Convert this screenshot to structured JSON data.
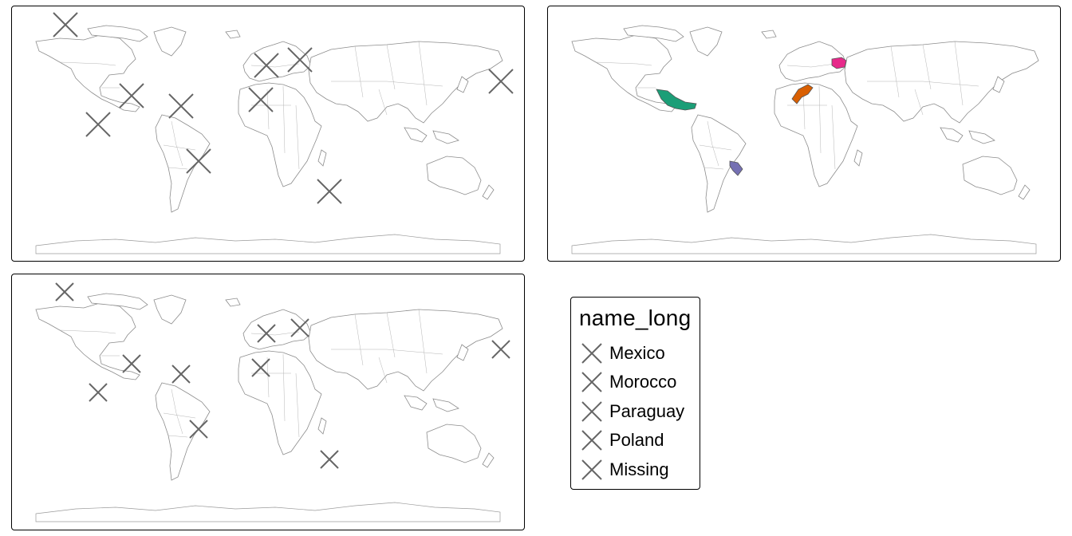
{
  "legend": {
    "title": "name_long",
    "items": [
      {
        "label": "Mexico",
        "color": "#1b9e77",
        "shape": "x-icon"
      },
      {
        "label": "Morocco",
        "color": "#d95f02",
        "shape": "x-icon"
      },
      {
        "label": "Paraguay",
        "color": "#7570b3",
        "shape": "x-icon"
      },
      {
        "label": "Poland",
        "color": "#e7298a",
        "shape": "x-icon"
      },
      {
        "label": "Missing",
        "color": "#666666",
        "shape": "x-icon"
      }
    ]
  },
  "map": {
    "basemap": "world country borders",
    "highlighted_countries": [
      "Mexico",
      "Morocco",
      "Paraguay",
      "Poland"
    ],
    "fill_colors": {
      "Mexico": "#1b9e77",
      "Morocco": "#d95f02",
      "Paraguay": "#7570b3",
      "Poland": "#e7298a"
    },
    "marker_color": "#666666"
  }
}
